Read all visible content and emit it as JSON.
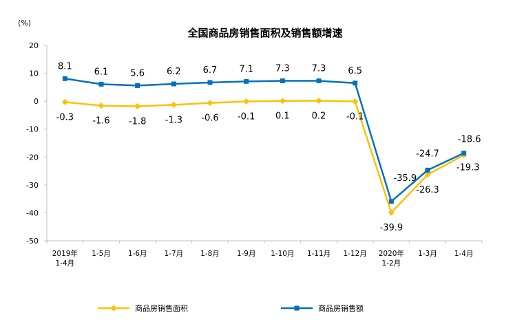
{
  "chart_data": {
    "type": "line",
    "title": "全国商品房销售面积及销售额增速",
    "unit": "(%)",
    "categories": [
      [
        "2019年",
        "1-4月"
      ],
      [
        "1-5月"
      ],
      [
        "1-6月"
      ],
      [
        "1-7月"
      ],
      [
        "1-8月"
      ],
      [
        "1-9月"
      ],
      [
        "1-10月"
      ],
      [
        "1-11月"
      ],
      [
        "1-12月"
      ],
      [
        "2020年",
        "1-2月"
      ],
      [
        "1-3月"
      ],
      [
        "1-4月"
      ]
    ],
    "series": [
      {
        "name": "商品房销售面积",
        "color": "#FFC000",
        "marker": "diamond",
        "values": [
          -0.3,
          -1.6,
          -1.8,
          -1.3,
          -0.6,
          -0.1,
          0.1,
          0.2,
          -0.1,
          -39.9,
          -26.3,
          -19.3
        ],
        "labels": [
          "-0.3",
          "-1.6",
          "-1.8",
          "-1.3",
          "-0.6",
          "-0.1",
          "0.1",
          "0.2",
          "-0.1",
          "-39.9",
          "-26.3",
          "-19.3"
        ]
      },
      {
        "name": "商品房销售额",
        "color": "#0070C0",
        "marker": "square",
        "values": [
          8.1,
          6.1,
          5.6,
          6.2,
          6.7,
          7.1,
          7.3,
          7.3,
          6.5,
          -35.9,
          -24.7,
          -18.6
        ],
        "labels": [
          "8.1",
          "6.1",
          "5.6",
          "6.2",
          "6.7",
          "7.1",
          "7.3",
          "7.3",
          "6.5",
          "-35.9",
          "-24.7",
          "-18.6"
        ]
      }
    ],
    "ylim": [
      -50,
      20
    ],
    "yticks": [
      20,
      10,
      0,
      -10,
      -20,
      -30,
      -40,
      -50
    ],
    "ytick_labels": [
      "20",
      "10",
      "0",
      "-10",
      "-20",
      "-30",
      "-40",
      "-50"
    ],
    "grid": false,
    "legend": "bottom"
  }
}
